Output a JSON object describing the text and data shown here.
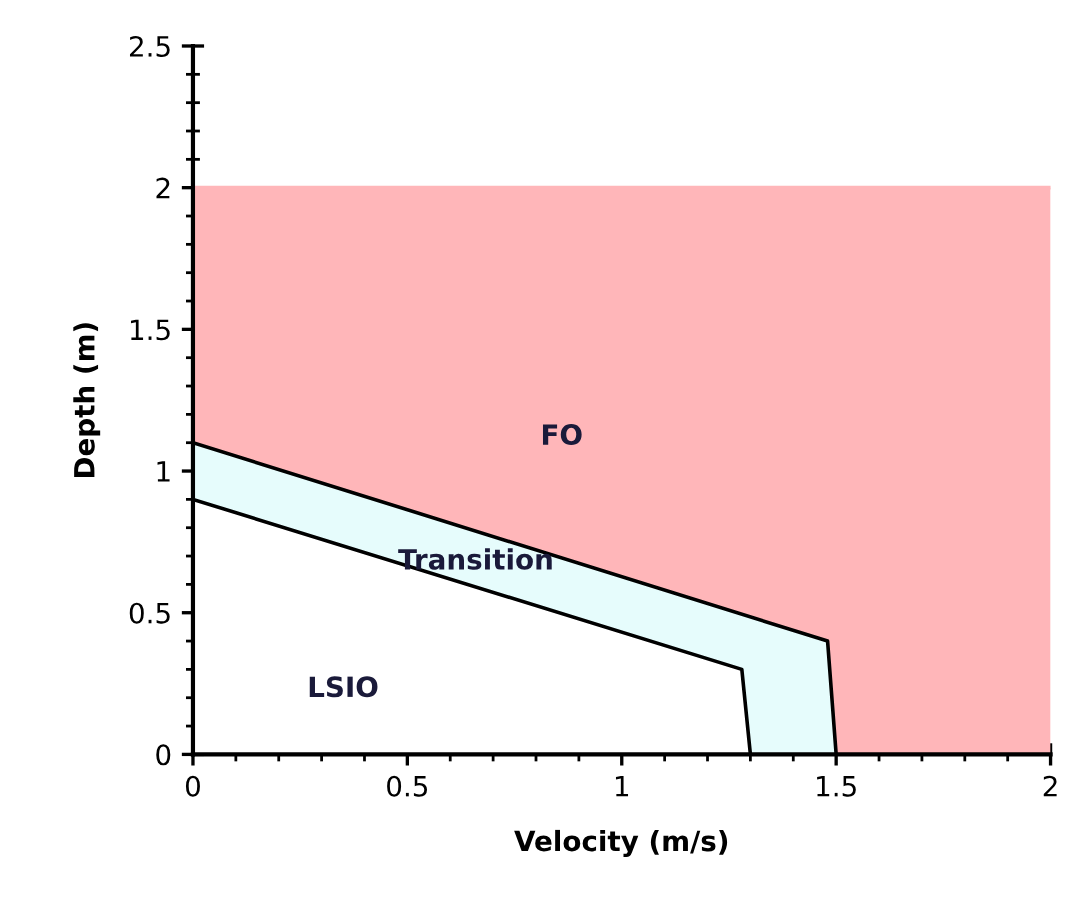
{
  "chart_data": {
    "type": "area",
    "xlabel": "Velocity (m/s)",
    "ylabel": "Depth (m)",
    "series": [
      {
        "x": [
          0,
          2
        ],
        "values": [
          2,
          2
        ],
        "color": "#ffb6b9"
      },
      {
        "x": [
          0,
          1.48,
          1.5
        ],
        "values": [
          1.1,
          0.4,
          0
        ],
        "color": "#e6fcfc"
      },
      {
        "x": [
          0,
          1.28,
          1.3
        ],
        "values": [
          0.9,
          0.3,
          0
        ],
        "color": "#ffffff"
      }
    ],
    "annotations": [
      "FO",
      "Transition",
      "LSIO"
    ],
    "xlim": [
      0,
      2
    ],
    "ylim": [
      0,
      2.5
    ],
    "xticks": [
      0,
      0.5,
      1,
      1.5,
      2
    ],
    "yticks": [
      0,
      0.5,
      1,
      1.5,
      2,
      2.5
    ],
    "grid": false,
    "legend": false
  }
}
